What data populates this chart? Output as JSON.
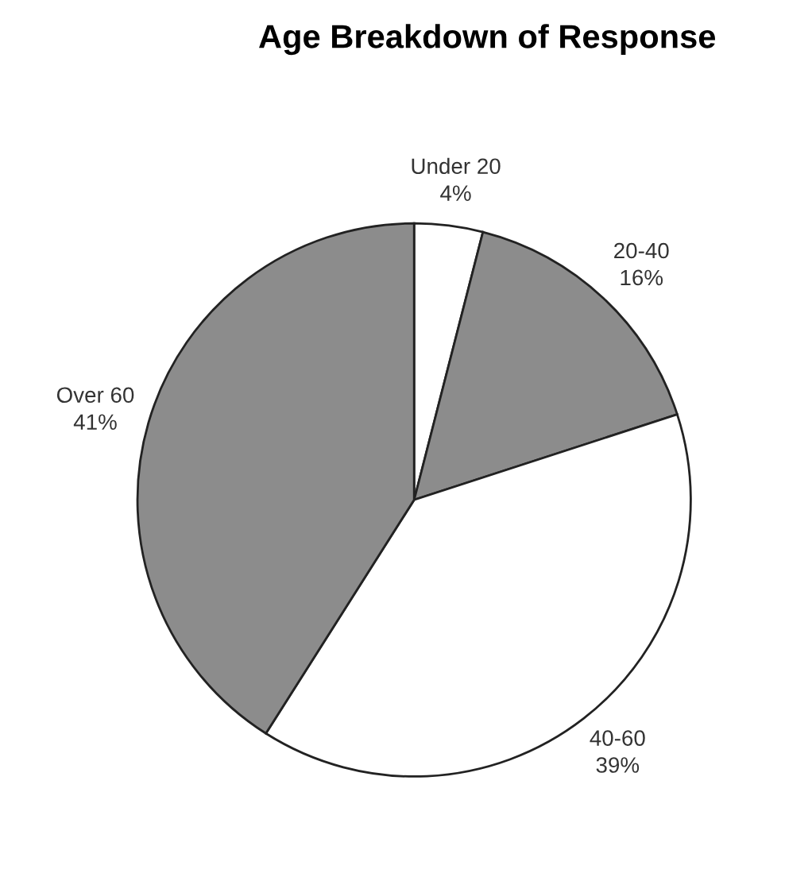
{
  "chart_data": {
    "type": "pie",
    "title": "Age Breakdown of Response",
    "categories": [
      "Under 20",
      "20-40",
      "40-60",
      "Over 60"
    ],
    "values": [
      4,
      16,
      39,
      41
    ],
    "colors": [
      "#ffffff",
      "#8c8c8c",
      "#ffffff",
      "#8c8c8c"
    ],
    "value_labels": [
      "4%",
      "16%",
      "39%",
      "41%"
    ]
  }
}
